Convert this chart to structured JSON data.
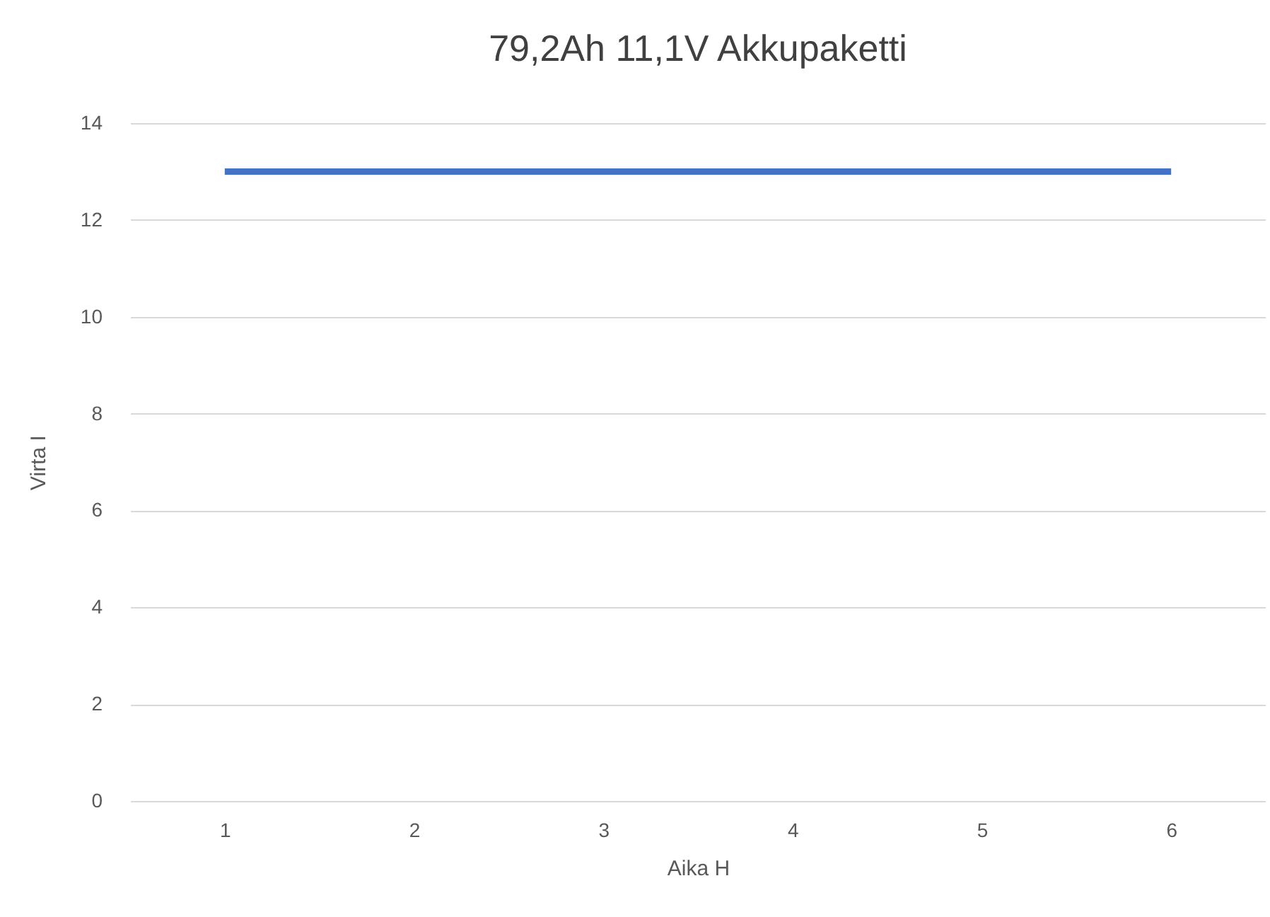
{
  "chart_data": {
    "type": "line",
    "title": "79,2Ah 11,1V  Akkupaketti",
    "xlabel": "Aika H",
    "ylabel": "Virta I",
    "categories": [
      "1",
      "2",
      "3",
      "4",
      "5",
      "6"
    ],
    "series": [
      {
        "color": "#4472c4",
        "values": [
          13,
          13,
          13,
          13,
          13,
          13
        ]
      }
    ],
    "ylim": [
      0,
      14
    ],
    "yticks": [
      0,
      2,
      4,
      6,
      8,
      10,
      12,
      14
    ],
    "grid": "y",
    "legend": false,
    "marker": "none",
    "line_style": "solid"
  }
}
